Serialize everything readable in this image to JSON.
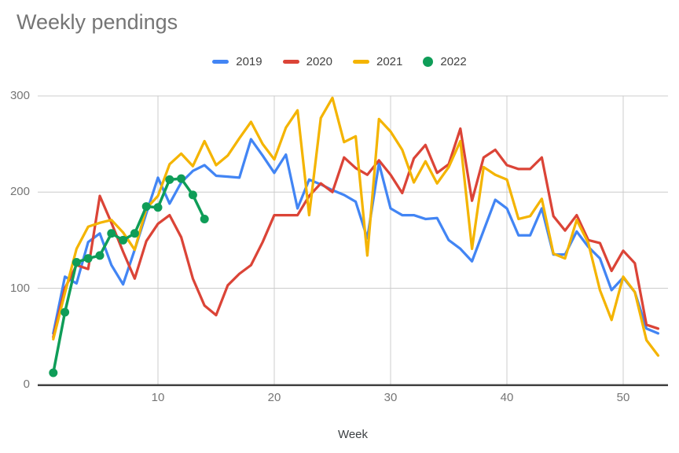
{
  "header": {
    "title": "Weekly pendings"
  },
  "legend": {
    "items": [
      {
        "label": "2019",
        "color": "#4285F4",
        "marker": "dash"
      },
      {
        "label": "2020",
        "color": "#DB4437",
        "marker": "dash"
      },
      {
        "label": "2021",
        "color": "#F4B400",
        "marker": "dash"
      },
      {
        "label": "2022",
        "color": "#0F9D58",
        "marker": "circle"
      }
    ]
  },
  "axes": {
    "y_tick_labels": [
      "300",
      "200",
      "100",
      "0"
    ],
    "x_tick_labels": [
      "10",
      "20",
      "30",
      "40",
      "50"
    ],
    "x_title": "Week"
  },
  "colors": {
    "grid": "#cccccc",
    "axis_line": "#424242",
    "title_text": "#757575",
    "tick_text": "#757575",
    "axis_title_text": "#3c4043"
  },
  "chart_data": {
    "type": "line",
    "title": "Weekly pendings",
    "xlabel": "Week",
    "ylabel": "",
    "xlim": [
      0,
      54
    ],
    "ylim": [
      0,
      300
    ],
    "x_ticks": [
      10,
      20,
      30,
      40,
      50
    ],
    "y_ticks": [
      0,
      100,
      200,
      300
    ],
    "grid": true,
    "legend_position": "top",
    "x": [
      1,
      2,
      3,
      4,
      5,
      6,
      7,
      8,
      9,
      10,
      11,
      12,
      13,
      14,
      15,
      16,
      17,
      18,
      19,
      20,
      21,
      22,
      23,
      24,
      25,
      26,
      27,
      28,
      29,
      30,
      31,
      32,
      33,
      34,
      35,
      36,
      37,
      38,
      39,
      40,
      41,
      42,
      43,
      44,
      45,
      46,
      47,
      48,
      49,
      50,
      51,
      52,
      53
    ],
    "series": [
      {
        "name": "2019",
        "color": "#4285F4",
        "marker": false,
        "values": [
          53,
          112,
          105,
          148,
          157,
          124,
          104,
          140,
          178,
          215,
          188,
          210,
          222,
          228,
          217,
          216,
          215,
          255,
          238,
          220,
          239,
          183,
          213,
          208,
          202,
          197,
          190,
          152,
          230,
          183,
          176,
          176,
          172,
          173,
          150,
          141,
          128,
          160,
          192,
          183,
          155,
          155,
          183,
          135,
          135,
          159,
          143,
          131,
          98,
          111,
          96,
          58,
          53
        ]
      },
      {
        "name": "2020",
        "color": "#DB4437",
        "marker": false,
        "values": [
          49,
          100,
          124,
          120,
          196,
          168,
          138,
          110,
          149,
          167,
          176,
          153,
          110,
          82,
          72,
          103,
          115,
          124,
          148,
          176,
          176,
          176,
          196,
          209,
          200,
          236,
          225,
          218,
          233,
          218,
          199,
          235,
          249,
          220,
          229,
          266,
          191,
          236,
          244,
          228,
          224,
          224,
          236,
          175,
          160,
          176,
          150,
          147,
          118,
          139,
          126,
          62,
          58
        ]
      },
      {
        "name": "2021",
        "color": "#F4B400",
        "marker": false,
        "values": [
          47,
          95,
          141,
          164,
          168,
          171,
          158,
          140,
          183,
          196,
          229,
          240,
          227,
          253,
          228,
          238,
          256,
          273,
          250,
          234,
          267,
          285,
          176,
          277,
          298,
          252,
          258,
          134,
          276,
          263,
          244,
          210,
          232,
          209,
          226,
          253,
          141,
          226,
          218,
          213,
          172,
          175,
          193,
          136,
          131,
          171,
          147,
          98,
          67,
          112,
          96,
          46,
          30
        ]
      },
      {
        "name": "2022",
        "color": "#0F9D58",
        "marker": true,
        "values": [
          12,
          75,
          127,
          131,
          134,
          157,
          150,
          157,
          185,
          184,
          213,
          214,
          197,
          172
        ]
      }
    ]
  }
}
